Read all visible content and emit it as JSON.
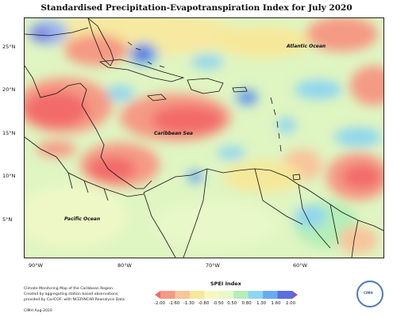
{
  "title": "Standardised Precipitation-Evapotranspiration Index for July 2020",
  "lat_labels": [
    "25°N",
    "20°N",
    "15°N",
    "10°N",
    "5°N"
  ],
  "lon_labels": [
    "90°W",
    "80°W",
    "70°W",
    "60°W"
  ],
  "ocean_labels": {
    "atlantic": "Atlantic Ocean",
    "caribbean": "Caribbean Sea",
    "pacific": "Pacific Ocean"
  },
  "credit": {
    "line1": "Climate Monitoring Map of the Caribbean Region.",
    "line2": "Created by aggregating station based observations,",
    "line3": "provided by CariCOF, with NCEP/NCAR Reanalysis Data.",
    "line4": "CIMH Aug-2020"
  },
  "legend": {
    "title": "SPEI Index",
    "ticks": [
      "-2.00",
      "-1.60",
      "-1.30",
      "-0.80",
      "-0.50",
      "0.50",
      "0.80",
      "1.30",
      "1.60",
      "2.00"
    ],
    "colors": [
      "#f26b6b",
      "#f59a84",
      "#f8c59c",
      "#f6e89a",
      "#f7f7c0",
      "#e8f8c8",
      "#b4eeb8",
      "#8fd6ef",
      "#6aaaf2",
      "#5b6fe0",
      "#7a58d0"
    ]
  },
  "logo": {
    "text": "CIMH"
  }
}
